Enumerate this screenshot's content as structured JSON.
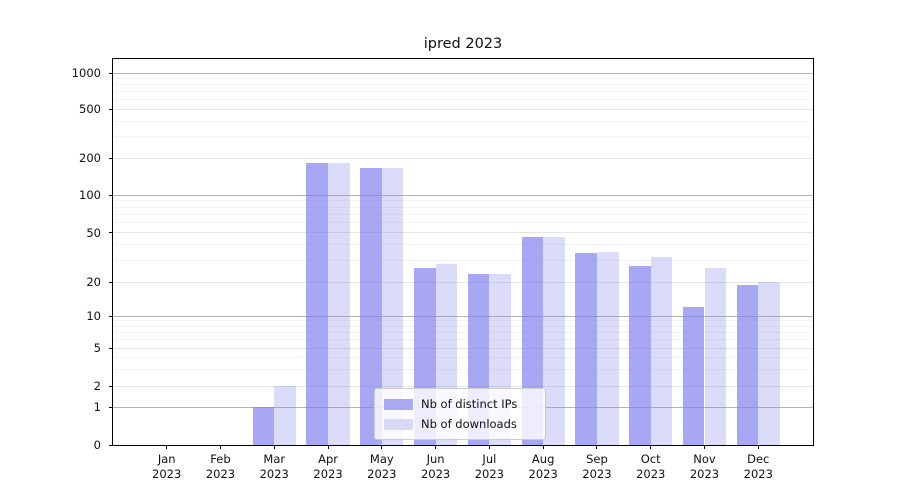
{
  "title": "ipred 2023",
  "y_axis": {
    "tick_labels": [
      "1000",
      "500",
      "200",
      "100",
      "50",
      "20",
      "10",
      "5",
      "2",
      "1",
      "0"
    ]
  },
  "x_axis": {
    "months": [
      "Jan",
      "Feb",
      "Mar",
      "Apr",
      "May",
      "Jun",
      "Jul",
      "Aug",
      "Sep",
      "Oct",
      "Nov",
      "Dec"
    ],
    "year": "2023"
  },
  "legend": {
    "items": [
      {
        "label": "Nb of distinct IPs",
        "color": "#a9a9f1"
      },
      {
        "label": "Nb of downloads",
        "color": "#d8d8f7"
      }
    ]
  },
  "chart_data": {
    "type": "bar",
    "title": "ipred 2023",
    "categories": [
      "Jan 2023",
      "Feb 2023",
      "Mar 2023",
      "Apr 2023",
      "May 2023",
      "Jun 2023",
      "Jul 2023",
      "Aug 2023",
      "Sep 2023",
      "Oct 2023",
      "Nov 2023",
      "Dec 2023"
    ],
    "series": [
      {
        "name": "Nb of distinct IPs",
        "color": "#a9a9f1",
        "values": [
          0,
          0,
          1,
          183,
          168,
          26,
          23,
          46,
          34,
          27,
          12,
          19
        ]
      },
      {
        "name": "Nb of downloads",
        "color": "#d8d8f7",
        "values": [
          0,
          0,
          2,
          183,
          166,
          28,
          23,
          46,
          35,
          32,
          26,
          20
        ]
      }
    ],
    "xlabel": "",
    "ylabel": "",
    "yscale": "symlog",
    "ylim": [
      0,
      1300
    ],
    "yticks": [
      0,
      1,
      2,
      5,
      10,
      20,
      50,
      100,
      200,
      500,
      1000
    ],
    "grid": true,
    "legend_position": "lower-center-inside"
  }
}
